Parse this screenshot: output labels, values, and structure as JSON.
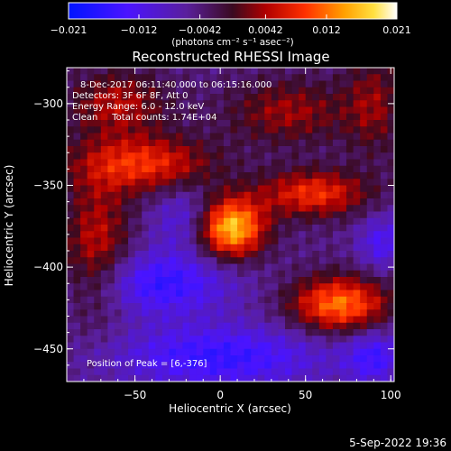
{
  "chart_data": {
    "type": "heatmap",
    "title": "Reconstructed RHESSI Image",
    "xlabel": "Heliocentric X (arcsec)",
    "ylabel": "Heliocentric Y (arcsec)",
    "xlim": [
      -90,
      102
    ],
    "ylim": [
      -470,
      -278
    ],
    "xticks": [
      -50,
      0,
      50,
      100
    ],
    "xtick_labels": [
      "−50",
      "0",
      "50",
      "100"
    ],
    "yticks": [
      -300,
      -350,
      -400,
      -450
    ],
    "ytick_labels": [
      "−300",
      "−350",
      "−400",
      "−450"
    ],
    "colorbar": {
      "min": -0.021,
      "max": 0.021,
      "ticks": [
        -0.021,
        -0.012,
        -0.0042,
        0.0042,
        0.012,
        0.021
      ],
      "tick_labels": [
        "−0.021",
        "−0.012",
        "−0.0042",
        "0.0042",
        "0.012",
        "0.021"
      ],
      "unit_label": "(photons cm⁻² s⁻¹ asec⁻²)",
      "colormap": "rainbow-blue-purple-red-orange-yellow-white"
    },
    "annotations": [
      "8-Dec-2017 06:11:40.000 to 06:15:16.000",
      "Detectors: 3F 6F 8F, Att 0",
      "Energy Range: 6.0 - 12.0 keV",
      "Clean     Total counts: 1.74E+04"
    ],
    "peak_label": "Position of Peak = [6,-376]",
    "sources": [
      {
        "x": 6,
        "y": -376,
        "value": 0.021,
        "sx": 14,
        "sy": 13
      },
      {
        "x": 70,
        "y": -423,
        "value": 0.016,
        "sx": 20,
        "sy": 12
      },
      {
        "x": 55,
        "y": -355,
        "value": 0.012,
        "sx": 22,
        "sy": 10
      },
      {
        "x": -45,
        "y": -337,
        "value": 0.012,
        "sx": 28,
        "sy": 12
      },
      {
        "x": -72,
        "y": -388,
        "value": 0.009,
        "sx": 14,
        "sy": 30
      },
      {
        "x": -60,
        "y": -300,
        "value": 0.008,
        "sx": 20,
        "sy": 14
      },
      {
        "x": 40,
        "y": -305,
        "value": 0.007,
        "sx": 25,
        "sy": 14
      },
      {
        "x": 90,
        "y": -300,
        "value": 0.006,
        "sx": 12,
        "sy": 22
      },
      {
        "x": -35,
        "y": -410,
        "value": -0.012,
        "sx": 30,
        "sy": 14
      },
      {
        "x": 0,
        "y": -455,
        "value": -0.012,
        "sx": 45,
        "sy": 14
      },
      {
        "x": -20,
        "y": -370,
        "value": -0.008,
        "sx": 14,
        "sy": 14
      },
      {
        "x": 90,
        "y": -455,
        "value": -0.01,
        "sx": 12,
        "sy": 12
      },
      {
        "x": 95,
        "y": -385,
        "value": -0.009,
        "sx": 10,
        "sy": 12
      }
    ]
  },
  "footer": {
    "timestamp": "5-Sep-2022 19:36"
  }
}
